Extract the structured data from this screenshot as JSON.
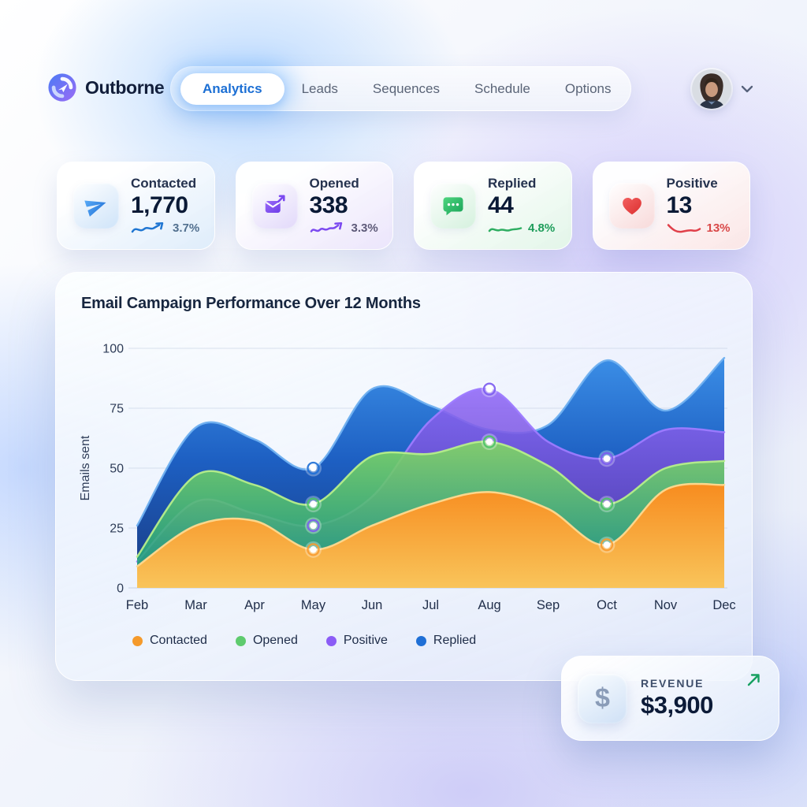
{
  "brand": {
    "name": "Outborne"
  },
  "nav": {
    "items": [
      {
        "label": "Analytics",
        "active": true
      },
      {
        "label": "Leads",
        "active": false
      },
      {
        "label": "Sequences",
        "active": false
      },
      {
        "label": "Schedule",
        "active": false
      },
      {
        "label": "Options",
        "active": false
      }
    ]
  },
  "stats": [
    {
      "label": "Contacted",
      "value": "1,770",
      "change": "3.7%",
      "icon": "paper-plane-icon",
      "accent": "#2076d2",
      "icon_bg": "#cfe4f9",
      "change_color": "#52708f",
      "trend": "up"
    },
    {
      "label": "Opened",
      "value": "338",
      "change": "3.3%",
      "icon": "mail-open-icon",
      "accent": "#7c4af0",
      "icon_bg": "#e2d9fa",
      "change_color": "#5d5a78",
      "trend": "up-wavy"
    },
    {
      "label": "Replied",
      "value": "44",
      "change": "4.8%",
      "icon": "chat-bubble-icon",
      "accent": "#2fae62",
      "icon_bg": "#d5f1de",
      "change_color": "#1f9d5b",
      "trend": "flat"
    },
    {
      "label": "Positive",
      "value": "13",
      "change": "13%",
      "icon": "heart-icon",
      "accent": "#e0404a",
      "icon_bg": "#f8dada",
      "change_color": "#d94848",
      "trend": "down"
    }
  ],
  "chart_data": {
    "type": "area",
    "title": "Email Campaign Performance Over 12 Months",
    "ylabel": "Emails sent",
    "xlabel": "",
    "x": [
      "Feb",
      "Mar",
      "Apr",
      "May",
      "Jun",
      "Jul",
      "Aug",
      "Sep",
      "Oct",
      "Nov",
      "Dec"
    ],
    "ylim": [
      0,
      100
    ],
    "yticks": [
      0,
      25,
      50,
      75,
      100
    ],
    "grid": true,
    "legend_position": "bottom-left",
    "series": [
      {
        "name": "Replied",
        "color": "#1f6fd6",
        "values": [
          26,
          67,
          62,
          50,
          83,
          76,
          66,
          68,
          95,
          74,
          96
        ]
      },
      {
        "name": "Positive",
        "color": "#7c5cf0",
        "values": [
          11,
          36,
          31,
          26,
          38,
          70,
          83,
          61,
          54,
          66,
          65
        ]
      },
      {
        "name": "Opened",
        "color": "#4cc465",
        "values": [
          13,
          47,
          43,
          35,
          55,
          56,
          61,
          51,
          35,
          50,
          53
        ]
      },
      {
        "name": "Contacted",
        "color": "#f99b2e",
        "values": [
          9,
          26,
          28,
          16,
          26,
          35,
          40,
          33,
          18,
          41,
          43
        ]
      }
    ],
    "markers": [
      {
        "series": "Replied",
        "month": "May",
        "value": 50
      },
      {
        "series": "Opened",
        "month": "May",
        "value": 35
      },
      {
        "series": "Positive",
        "month": "May",
        "value": 26
      },
      {
        "series": "Contacted",
        "month": "May",
        "value": 16
      },
      {
        "series": "Positive",
        "month": "Aug",
        "value": 83
      },
      {
        "series": "Opened",
        "month": "Aug",
        "value": 61
      },
      {
        "series": "Positive",
        "month": "Oct",
        "value": 54
      },
      {
        "series": "Opened",
        "month": "Oct",
        "value": 35
      },
      {
        "series": "Contacted",
        "month": "Oct",
        "value": 18
      }
    ],
    "legend": [
      {
        "label": "Contacted",
        "color": "#f59a2b"
      },
      {
        "label": "Opened",
        "color": "#5ecb6e"
      },
      {
        "label": "Positive",
        "color": "#8b5cf6"
      },
      {
        "label": "Replied",
        "color": "#1f6fd6"
      }
    ]
  },
  "revenue": {
    "label": "REVENUE",
    "value": "$3,900",
    "currency_symbol": "$",
    "icon": "dollar-icon",
    "arrow_icon": "trend-up-arrow-icon",
    "arrow_color": "#17a061"
  }
}
